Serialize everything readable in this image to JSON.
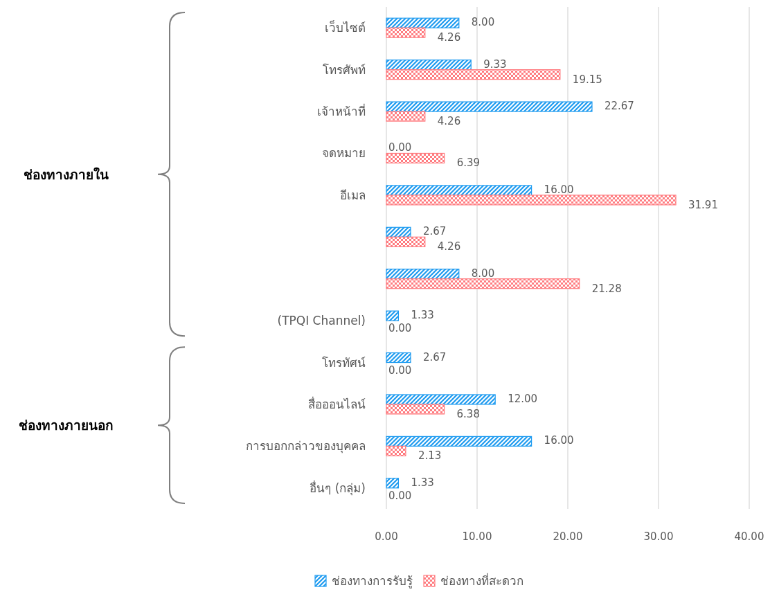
{
  "chart_data": {
    "type": "bar",
    "orientation": "horizontal",
    "categories": [
      "เว็บไซต์",
      "โทรศัพท์",
      "เจ้าหน้าที่",
      "จดหมาย",
      "อีเมล",
      null,
      null,
      "(TPQI Channel)",
      "โทรทัศน์",
      "สื่อออนไลน์",
      "การบอกกล่าวของบุคคล",
      "อื่นๆ (กลุ่ม)"
    ],
    "series": [
      {
        "name": "ช่องทางการรับรู้",
        "color": "#1e9bf0",
        "values": [
          8.0,
          9.33,
          22.67,
          0.0,
          16.0,
          2.67,
          8.0,
          1.33,
          2.67,
          12.0,
          16.0,
          1.33
        ],
        "value_labels": [
          "8.00",
          "9.33",
          "22.67",
          "0.00",
          "16.00",
          "2.67",
          "8.00",
          "1.33",
          "2.67",
          "12.00",
          "16.00",
          "1.33"
        ]
      },
      {
        "name": "ช่องทางที่สะดวก",
        "color": "#ff7c80",
        "values": [
          4.26,
          19.15,
          4.26,
          6.39,
          31.91,
          4.26,
          21.28,
          0.0,
          0.0,
          6.38,
          2.13,
          0.0
        ],
        "value_labels": [
          "4.26",
          "19.15",
          "4.26",
          "6.39",
          "31.91",
          "4.26",
          "21.28",
          "0.00",
          "0.00",
          "6.38",
          "2.13",
          "0.00"
        ]
      }
    ],
    "xlim": [
      0,
      40
    ],
    "xticks": [
      {
        "value": 0,
        "label": "0.00"
      },
      {
        "value": 10,
        "label": "10.00"
      },
      {
        "value": 20,
        "label": "20.00"
      },
      {
        "value": 30,
        "label": "30.00"
      },
      {
        "value": 40,
        "label": "40.00"
      }
    ],
    "grid": "x",
    "legend": "bottom",
    "annotations": [
      "ช่องทางภายใน",
      "ช่องทางภายนอก"
    ]
  }
}
